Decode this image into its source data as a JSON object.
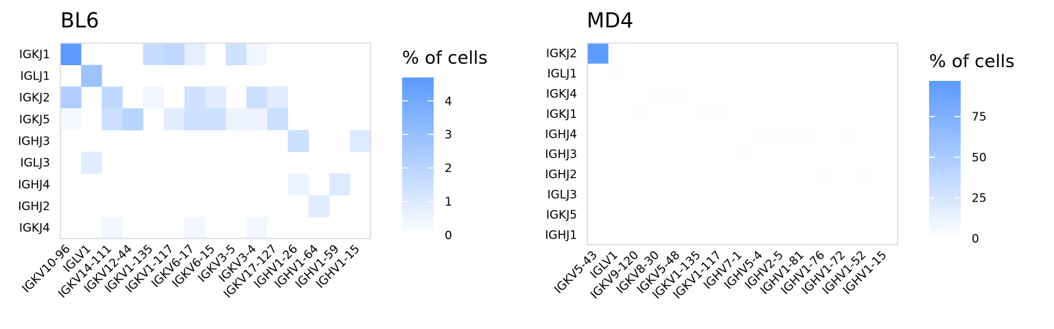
{
  "chart_data": [
    {
      "type": "heatmap",
      "title": "BL6",
      "legend_title": "% of cells",
      "legend_ticks": [
        0,
        1,
        2,
        3,
        4
      ],
      "value_range": [
        0,
        4.7
      ],
      "color_low": "#ffffff",
      "color_high": "#5b9aff",
      "x_categories": [
        "IGKV10-96",
        "IGLV1",
        "IGKV14-111",
        "IGKV12-44",
        "IGKV1-135",
        "IGKV1-117",
        "IGKV6-17",
        "IGKV6-15",
        "IGKV3-5",
        "IGKV3-4",
        "IGKV17-127",
        "IGHV1-26",
        "IGHV1-64",
        "IGHV1-59",
        "IGHV1-15"
      ],
      "y_categories": [
        "IGKJ1",
        "IGLJ1",
        "IGKJ2",
        "IGKJ5",
        "IGHJ3",
        "IGLJ3",
        "IGHJ4",
        "IGHJ2",
        "IGKJ4"
      ],
      "cells": [
        [
          "IGKV10-96",
          "IGKJ1",
          4.7
        ],
        [
          "IGKV1-135",
          "IGKJ1",
          1.6
        ],
        [
          "IGKV1-117",
          "IGKJ1",
          1.8
        ],
        [
          "IGKV6-17",
          "IGKJ1",
          0.8
        ],
        [
          "IGKV3-5",
          "IGKJ1",
          1.4
        ],
        [
          "IGKV3-4",
          "IGKJ1",
          0.4
        ],
        [
          "IGLV1",
          "IGLJ1",
          2.8
        ],
        [
          "IGKV10-96",
          "IGKJ2",
          2.3
        ],
        [
          "IGKV14-111",
          "IGKJ2",
          1.8
        ],
        [
          "IGKV1-135",
          "IGKJ2",
          0.4
        ],
        [
          "IGKV6-17",
          "IGKJ2",
          1.4
        ],
        [
          "IGKV6-15",
          "IGKJ2",
          0.9
        ],
        [
          "IGKV3-4",
          "IGKJ2",
          1.5
        ],
        [
          "IGKV17-127",
          "IGKJ2",
          0.9
        ],
        [
          "IGKV10-96",
          "IGKJ5",
          0.3
        ],
        [
          "IGKV14-111",
          "IGKJ5",
          1.5
        ],
        [
          "IGKV12-44",
          "IGKJ5",
          2.0
        ],
        [
          "IGKV1-117",
          "IGKJ5",
          0.9
        ],
        [
          "IGKV6-17",
          "IGKJ5",
          1.4
        ],
        [
          "IGKV6-15",
          "IGKJ5",
          1.4
        ],
        [
          "IGKV3-5",
          "IGKJ5",
          0.5
        ],
        [
          "IGKV3-4",
          "IGKJ5",
          0.5
        ],
        [
          "IGKV17-127",
          "IGKJ5",
          1.5
        ],
        [
          "IGHV1-26",
          "IGHJ3",
          1.5
        ],
        [
          "IGHV1-15",
          "IGHJ3",
          1.0
        ],
        [
          "IGLV1",
          "IGLJ3",
          0.9
        ],
        [
          "IGHV1-26",
          "IGHJ4",
          0.5
        ],
        [
          "IGHV1-59",
          "IGHJ4",
          1.0
        ],
        [
          "IGHV1-64",
          "IGHJ2",
          0.9
        ],
        [
          "IGKV14-111",
          "IGKJ4",
          0.4
        ],
        [
          "IGKV6-17",
          "IGKJ4",
          0.4
        ],
        [
          "IGKV3-4",
          "IGKJ4",
          0.4
        ]
      ]
    },
    {
      "type": "heatmap",
      "title": "MD4",
      "legend_title": "% of cells",
      "legend_ticks": [
        0,
        25,
        50,
        75
      ],
      "value_range": [
        0,
        97
      ],
      "color_low": "#ffffff",
      "color_high": "#5b9aff",
      "x_categories": [
        "IGKV5-43",
        "IGLV1",
        "IGKV9-120",
        "IGKV8-30",
        "IGKV5-48",
        "IGKV1-135",
        "IGKV1-117",
        "IGHV7-1",
        "IGHV5-4",
        "IGHV2-5",
        "IGHV1-81",
        "IGHV1-76",
        "IGHV1-72",
        "IGHV1-52",
        "IGHV1-15"
      ],
      "y_categories": [
        "IGKJ2",
        "IGLJ1",
        "IGKJ4",
        "IGKJ1",
        "IGHJ4",
        "IGHJ3",
        "IGHJ2",
        "IGLJ3",
        "IGKJ5",
        "IGHJ1"
      ],
      "cells": [
        [
          "IGKV5-43",
          "IGKJ2",
          97
        ],
        [
          "IGLV1",
          "IGLJ1",
          0.8
        ],
        [
          "IGKV8-30",
          "IGKJ4",
          0.8
        ],
        [
          "IGKV5-48",
          "IGKJ4",
          0.8
        ],
        [
          "IGKV9-120",
          "IGKJ1",
          0.8
        ],
        [
          "IGKV1-135",
          "IGKJ1",
          0.8
        ],
        [
          "IGKV1-117",
          "IGKJ1",
          0.8
        ],
        [
          "IGHV5-4",
          "IGHJ4",
          0.8
        ],
        [
          "IGHV2-5",
          "IGHJ4",
          0.8
        ],
        [
          "IGHV1-81",
          "IGHJ4",
          0.8
        ],
        [
          "IGHV1-72",
          "IGHJ4",
          0.8
        ],
        [
          "IGHV7-1",
          "IGHJ3",
          0.8
        ],
        [
          "IGHV1-76",
          "IGHJ2",
          0.8
        ],
        [
          "IGHV1-52",
          "IGHJ2",
          0.8
        ]
      ]
    }
  ]
}
